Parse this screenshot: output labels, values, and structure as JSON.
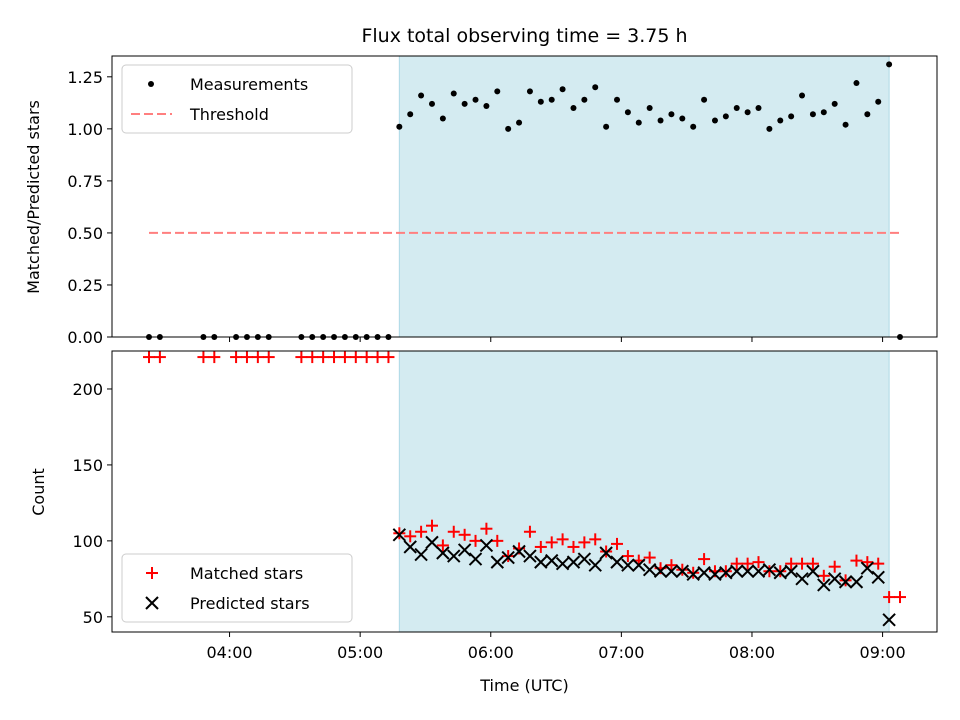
{
  "chart_data": [
    {
      "type": "scatter",
      "title": "Flux total observing time = 3.75 h",
      "xlabel": "",
      "ylabel": "Matched/Predicted stars",
      "ylim": [
        0,
        1.35
      ],
      "xlim": [
        "03:06",
        "09:25"
      ],
      "grid": false,
      "legend_position": "top-left",
      "y_ticks": [
        "0.00",
        "0.25",
        "0.50",
        "0.75",
        "1.00",
        "1.25"
      ],
      "y_tick_values": [
        0,
        0.25,
        0.5,
        0.75,
        1.0,
        1.25
      ],
      "shaded_interval": {
        "start": "05:18",
        "end": "09:03",
        "color": "#d4ebf1"
      },
      "series": [
        {
          "name": "Measurements",
          "marker": "dot",
          "color": "#000000",
          "x": [
            "03:23",
            "03:28",
            "03:48",
            "03:53",
            "04:03",
            "04:08",
            "04:13",
            "04:18",
            "04:33",
            "04:38",
            "04:43",
            "04:48",
            "04:53",
            "04:58",
            "05:03",
            "05:08",
            "05:13",
            "05:18",
            "05:23",
            "05:28",
            "05:33",
            "05:38",
            "05:43",
            "05:48",
            "05:53",
            "05:58",
            "06:03",
            "06:08",
            "06:13",
            "06:18",
            "06:23",
            "06:28",
            "06:33",
            "06:38",
            "06:43",
            "06:48",
            "06:53",
            "06:58",
            "07:03",
            "07:08",
            "07:13",
            "07:18",
            "07:23",
            "07:28",
            "07:33",
            "07:38",
            "07:43",
            "07:48",
            "07:53",
            "07:58",
            "08:03",
            "08:08",
            "08:13",
            "08:18",
            "08:23",
            "08:28",
            "08:33",
            "08:38",
            "08:43",
            "08:48",
            "08:53",
            "08:58",
            "09:03",
            "09:08"
          ],
          "y": [
            0,
            0,
            0,
            0,
            0,
            0,
            0,
            0,
            0,
            0,
            0,
            0,
            0,
            0,
            0,
            0,
            0,
            1.01,
            1.07,
            1.16,
            1.12,
            1.05,
            1.17,
            1.12,
            1.14,
            1.11,
            1.18,
            1.0,
            1.03,
            1.18,
            1.13,
            1.14,
            1.19,
            1.1,
            1.14,
            1.2,
            1.01,
            1.14,
            1.08,
            1.03,
            1.1,
            1.04,
            1.07,
            1.05,
            1.01,
            1.14,
            1.04,
            1.06,
            1.1,
            1.08,
            1.1,
            1.0,
            1.04,
            1.06,
            1.16,
            1.07,
            1.08,
            1.12,
            1.02,
            1.22,
            1.07,
            1.13,
            1.31,
            0
          ]
        },
        {
          "name": "Threshold",
          "style": "dashed",
          "color": "#ff7f7f",
          "x": [
            "03:23",
            "09:08"
          ],
          "y": [
            0.5,
            0.5
          ]
        }
      ]
    },
    {
      "type": "scatter",
      "title": "",
      "xlabel": "Time (UTC)",
      "ylabel": "Count",
      "ylim": [
        40,
        225
      ],
      "xlim": [
        "03:06",
        "09:25"
      ],
      "grid": false,
      "legend_position": "bottom-left",
      "x_ticks": [
        "04:00",
        "05:00",
        "06:00",
        "07:00",
        "08:00",
        "09:00"
      ],
      "y_ticks": [
        "50",
        "100",
        "150",
        "200"
      ],
      "y_tick_values": [
        50,
        100,
        150,
        200
      ],
      "shaded_interval": {
        "start": "05:18",
        "end": "09:03",
        "color": "#d4ebf1"
      },
      "series": [
        {
          "name": "Matched stars",
          "marker": "plus",
          "color": "#ff0000",
          "x": [
            "03:23",
            "03:28",
            "03:48",
            "03:53",
            "04:03",
            "04:08",
            "04:13",
            "04:18",
            "04:33",
            "04:38",
            "04:43",
            "04:48",
            "04:53",
            "04:58",
            "05:03",
            "05:08",
            "05:13",
            "05:18",
            "05:23",
            "05:28",
            "05:33",
            "05:38",
            "05:43",
            "05:48",
            "05:53",
            "05:58",
            "06:03",
            "06:08",
            "06:13",
            "06:18",
            "06:23",
            "06:28",
            "06:33",
            "06:38",
            "06:43",
            "06:48",
            "06:53",
            "06:58",
            "07:03",
            "07:08",
            "07:13",
            "07:18",
            "07:23",
            "07:28",
            "07:33",
            "07:38",
            "07:43",
            "07:48",
            "07:53",
            "07:58",
            "08:03",
            "08:08",
            "08:13",
            "08:18",
            "08:23",
            "08:28",
            "08:33",
            "08:38",
            "08:43",
            "08:48",
            "08:53",
            "08:58",
            "09:03",
            "09:08"
          ],
          "y": [
            221,
            221,
            221,
            221,
            221,
            221,
            221,
            221,
            221,
            221,
            221,
            221,
            221,
            221,
            221,
            221,
            221,
            105,
            103,
            106,
            110,
            97,
            106,
            104,
            100,
            108,
            100,
            90,
            95,
            106,
            96,
            99,
            101,
            96,
            99,
            101,
            93,
            98,
            90,
            87,
            89,
            82,
            84,
            81,
            79,
            88,
            80,
            80,
            85,
            85,
            86,
            80,
            80,
            85,
            85,
            85,
            77,
            83,
            74,
            87,
            86,
            85,
            63,
            63
          ]
        },
        {
          "name": "Predicted stars",
          "marker": "x",
          "color": "#000000",
          "x": [
            "05:18",
            "05:23",
            "05:28",
            "05:33",
            "05:38",
            "05:43",
            "05:48",
            "05:53",
            "05:58",
            "06:03",
            "06:08",
            "06:13",
            "06:18",
            "06:23",
            "06:28",
            "06:33",
            "06:38",
            "06:43",
            "06:48",
            "06:53",
            "06:58",
            "07:03",
            "07:08",
            "07:13",
            "07:18",
            "07:23",
            "07:28",
            "07:33",
            "07:38",
            "07:43",
            "07:48",
            "07:53",
            "07:58",
            "08:03",
            "08:08",
            "08:13",
            "08:18",
            "08:23",
            "08:28",
            "08:33",
            "08:38",
            "08:43",
            "08:48",
            "08:53",
            "08:58",
            "09:03"
          ],
          "y": [
            104,
            96,
            91,
            99,
            92,
            90,
            94,
            88,
            97,
            86,
            89,
            93,
            90,
            86,
            87,
            85,
            86,
            88,
            84,
            92,
            86,
            84,
            84,
            81,
            80,
            80,
            80,
            78,
            79,
            78,
            79,
            80,
            80,
            80,
            81,
            79,
            80,
            75,
            80,
            71,
            75,
            73,
            73,
            82,
            76,
            48
          ]
        }
      ]
    }
  ]
}
